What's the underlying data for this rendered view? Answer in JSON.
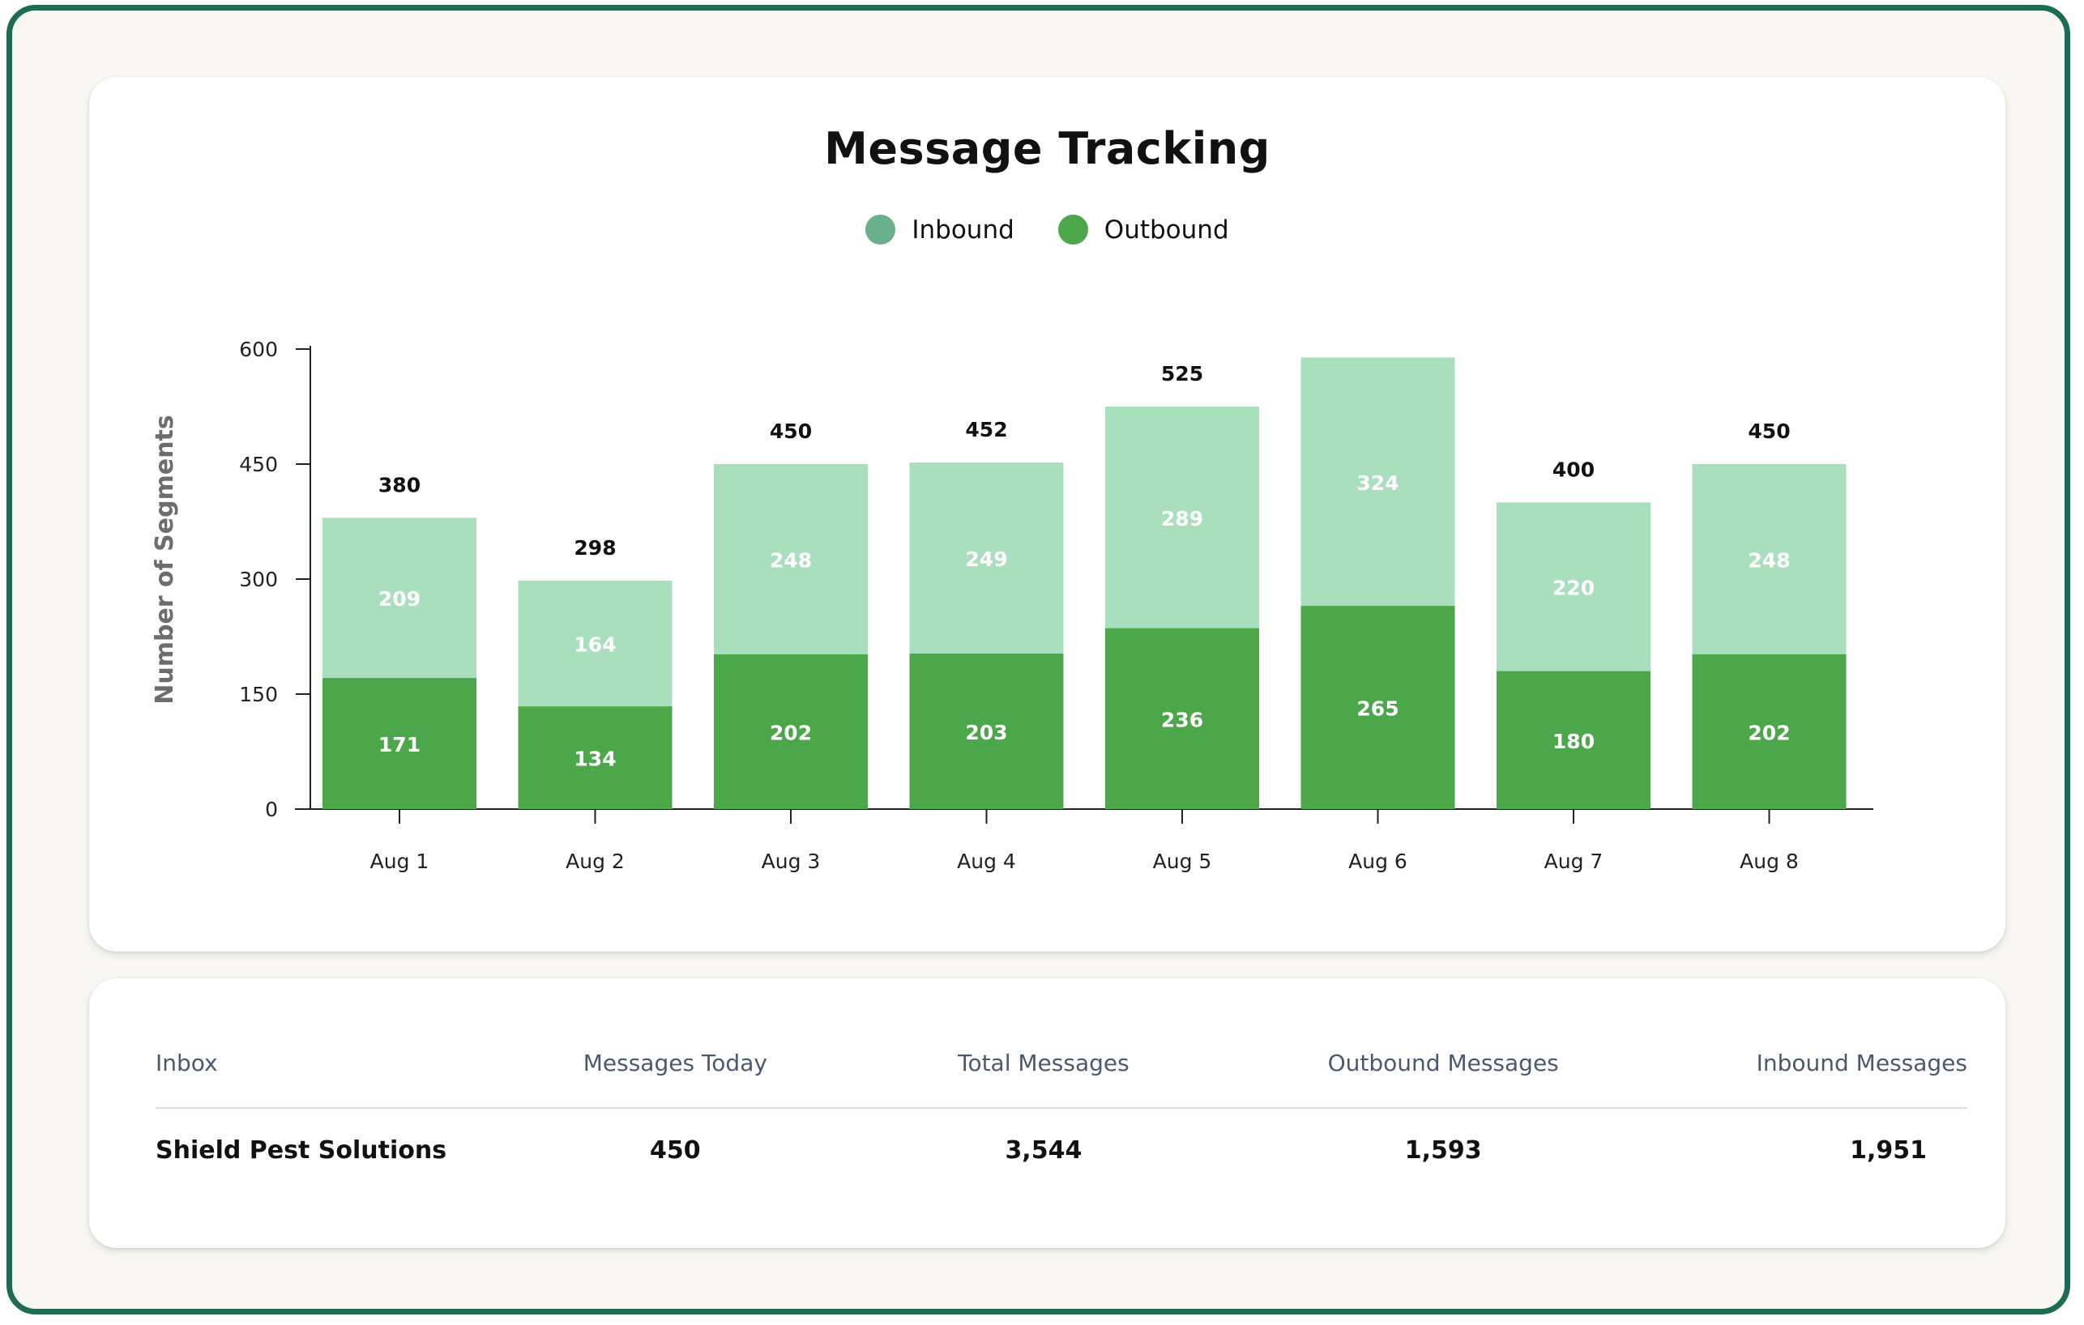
{
  "chart_data": {
    "type": "bar",
    "stacked": true,
    "title": "Message Tracking",
    "ylabel": "Number of Segments",
    "xlabel": "",
    "categories": [
      "Aug 1",
      "Aug 2",
      "Aug 3",
      "Aug 4",
      "Aug 5",
      "Aug 6",
      "Aug 7",
      "Aug 8"
    ],
    "series": [
      {
        "name": "Outbound",
        "color": "#4ca64a",
        "values": [
          171,
          134,
          202,
          203,
          236,
          265,
          180,
          202
        ]
      },
      {
        "name": "Inbound",
        "color": "#aadfbe",
        "values": [
          209,
          164,
          248,
          249,
          289,
          324,
          220,
          248
        ]
      }
    ],
    "totals": [
      380,
      298,
      450,
      452,
      525,
      null,
      400,
      450
    ],
    "ylim": [
      0,
      600
    ],
    "yticks": [
      0,
      150,
      300,
      450,
      600
    ],
    "legend": [
      {
        "name": "Inbound",
        "color": "#6bb08c"
      },
      {
        "name": "Outbound",
        "color": "#4ca64a"
      }
    ],
    "legend_position": "top-center",
    "grid": false
  },
  "table": {
    "headers": [
      "Inbox",
      "Messages Today",
      "Total Messages",
      "Outbound Messages",
      "Inbound Messages"
    ],
    "rows": [
      [
        "Shield Pest Solutions",
        "450",
        "3,544",
        "1,593",
        "1,951"
      ]
    ]
  }
}
